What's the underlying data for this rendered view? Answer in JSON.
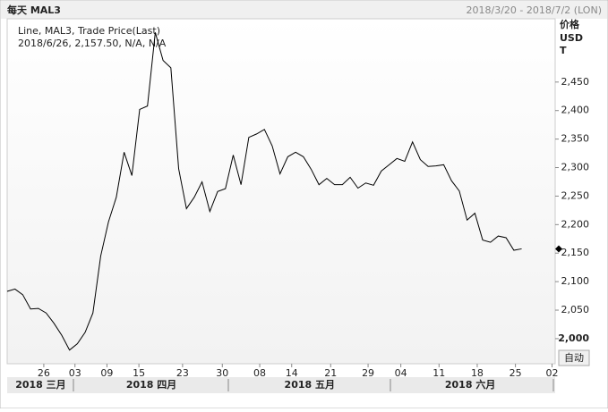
{
  "chart_data": {
    "type": "line",
    "title": "每天 MAL3",
    "date_range": "2018/3/20 - 2018/7/2 (LON)",
    "legend": [
      "Line, MAL3, Trade Price(Last)",
      "2018/6/26, 2,157.50, N/A, N/A"
    ],
    "y_axis_label": [
      "价格",
      "USD",
      "T"
    ],
    "button": "自动",
    "color": "#000000",
    "values": [
      2083,
      2087,
      2077,
      2052,
      2053,
      2045,
      2027,
      2006,
      1980,
      1991,
      2011,
      2045,
      2145,
      2205,
      2248,
      2327,
      2286,
      2402,
      2408,
      2537,
      2488,
      2475,
      2298,
      2228,
      2248,
      2275,
      2223,
      2258,
      2263,
      2322,
      2270,
      2353,
      2359,
      2367,
      2338,
      2289,
      2319,
      2327,
      2319,
      2297,
      2270,
      2281,
      2270,
      2270,
      2283,
      2264,
      2273,
      2269,
      2294,
      2305,
      2316,
      2311,
      2345,
      2314,
      2302,
      2303,
      2305,
      2277,
      2259,
      2208,
      2220,
      2173,
      2169,
      2180,
      2177,
      2155,
      2157.5
    ],
    "xlim": [
      0,
      70.3
    ],
    "xticks": [
      {
        "value": 4.7,
        "label": "26"
      },
      {
        "value": 8.7,
        "label": "03"
      },
      {
        "value": 12.8,
        "label": "09"
      },
      {
        "value": 16.9,
        "label": "15"
      },
      {
        "value": 22.5,
        "label": "23"
      },
      {
        "value": 27.6,
        "label": "30"
      },
      {
        "value": 32.4,
        "label": "08"
      },
      {
        "value": 36.5,
        "label": "14"
      },
      {
        "value": 41.5,
        "label": "21"
      },
      {
        "value": 46.3,
        "label": "29"
      },
      {
        "value": 50.5,
        "label": "04"
      },
      {
        "value": 55.4,
        "label": "11"
      },
      {
        "value": 60.3,
        "label": "18"
      },
      {
        "value": 65.2,
        "label": "25"
      },
      {
        "value": 69.9,
        "label": "02"
      }
    ],
    "month_ticks": [
      {
        "value": 4.3,
        "label": "2018 三月"
      },
      {
        "value": 18.5,
        "label": "2018 四月"
      },
      {
        "value": 38.8,
        "label": "2018 五月"
      },
      {
        "value": 59.4,
        "label": "2018 六月"
      }
    ],
    "ylim": [
      1956,
      2561
    ],
    "yticks": [
      {
        "value": 2000,
        "label": "2,000"
      },
      {
        "value": 2050,
        "label": "2,050"
      },
      {
        "value": 2100,
        "label": "2,100"
      },
      {
        "value": 2150,
        "label": "2,150"
      },
      {
        "value": 2200,
        "label": "2,200"
      },
      {
        "value": 2250,
        "label": "2,250"
      },
      {
        "value": 2300,
        "label": "2,300"
      },
      {
        "value": 2350,
        "label": "2,350"
      },
      {
        "value": 2400,
        "label": "2,400"
      },
      {
        "value": 2450,
        "label": "2,450"
      }
    ]
  }
}
